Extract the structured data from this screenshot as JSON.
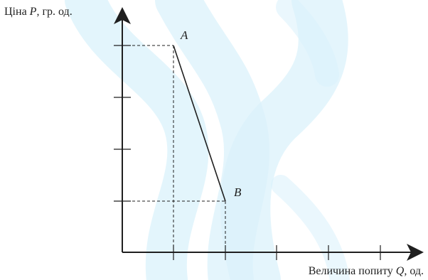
{
  "y_axis": {
    "prefix": "Ціна ",
    "symbol": "P",
    "suffix": ", гр. од."
  },
  "x_axis": {
    "prefix": "Величина попиту ",
    "symbol": "Q",
    "suffix": ", од."
  },
  "points": {
    "a": "A",
    "b": "B"
  },
  "colors": {
    "ink": "#1f1f1f",
    "watermark": "#d9f1fb"
  },
  "watermark": "decorative light-blue stylized watermark",
  "y_ticks": 4,
  "x_ticks": 5
}
